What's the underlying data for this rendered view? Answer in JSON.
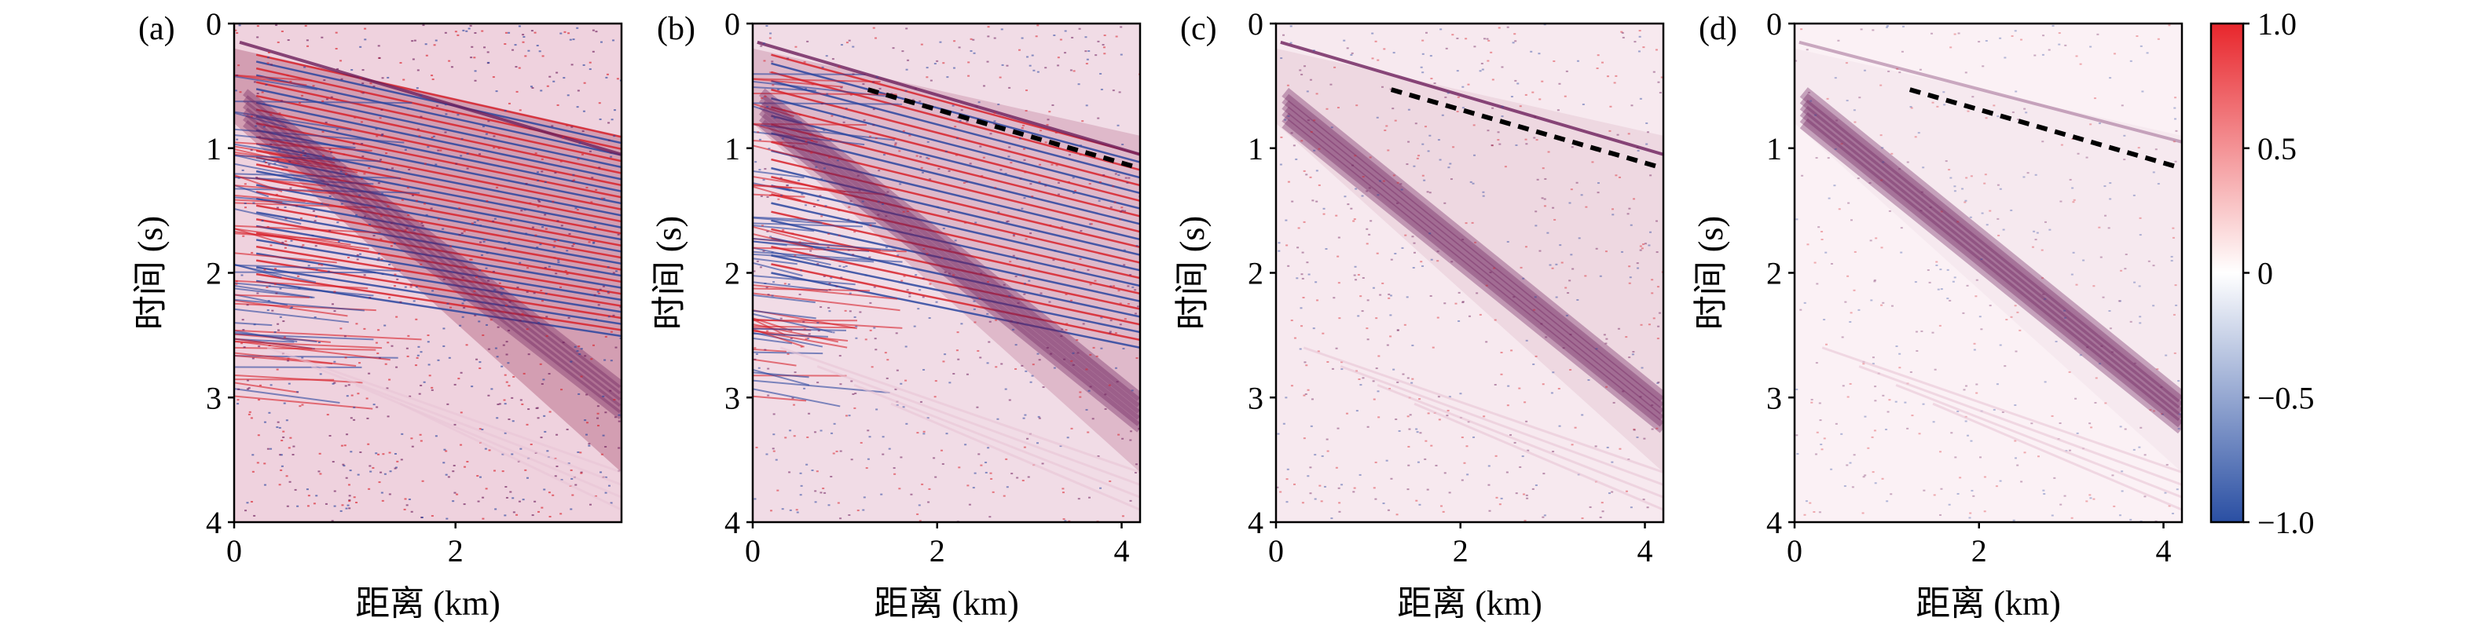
{
  "figure": {
    "colorbar": {
      "ticks": [
        1.0,
        0.5,
        0,
        -0.5,
        -1.0
      ],
      "tick_labels": [
        "1.0",
        "0.5",
        "0",
        "−0.5",
        "−1.0"
      ],
      "range": [
        -1.0,
        1.0
      ],
      "colormap": {
        "positive": "#e8262c",
        "zero": "#ffffff",
        "negative": "#2a4fa3"
      }
    }
  },
  "chart_data": [
    {
      "type": "heatmap",
      "panel": "(a)",
      "xlabel": "距离 (km)",
      "ylabel": "时间 (s)",
      "x_ticks": [
        0,
        2
      ],
      "y_ticks": [
        0,
        1,
        2,
        3,
        4
      ],
      "xlim": [
        0,
        3.5
      ],
      "ylim": [
        4,
        0
      ],
      "y_inverted": true,
      "colorbar_range": [
        -1.0,
        1.0
      ],
      "annotations": []
    },
    {
      "type": "heatmap",
      "panel": "(b)",
      "xlabel": "距离 (km)",
      "ylabel": "时间 (s)",
      "x_ticks": [
        0,
        2,
        4
      ],
      "y_ticks": [
        0,
        1,
        2,
        3,
        4
      ],
      "xlim": [
        0,
        4.2
      ],
      "ylim": [
        4,
        0
      ],
      "y_inverted": true,
      "colorbar_range": [
        -1.0,
        1.0
      ],
      "annotations": [
        {
          "type": "dashed-line",
          "color": "#000000",
          "x": [
            1.25,
            4.15
          ],
          "y": [
            0.53,
            1.15
          ]
        }
      ]
    },
    {
      "type": "heatmap",
      "panel": "(c)",
      "xlabel": "距离 (km)",
      "ylabel": "时间 (s)",
      "x_ticks": [
        0,
        2,
        4
      ],
      "y_ticks": [
        0,
        1,
        2,
        3,
        4
      ],
      "xlim": [
        0,
        4.2
      ],
      "ylim": [
        4,
        0
      ],
      "y_inverted": true,
      "colorbar_range": [
        -1.0,
        1.0
      ],
      "annotations": [
        {
          "type": "dashed-line",
          "color": "#000000",
          "x": [
            1.25,
            4.15
          ],
          "y": [
            0.53,
            1.15
          ]
        }
      ]
    },
    {
      "type": "heatmap",
      "panel": "(d)",
      "xlabel": "距离 (km)",
      "ylabel": "时间 (s)",
      "x_ticks": [
        0,
        2,
        4
      ],
      "y_ticks": [
        0,
        1,
        2,
        3,
        4
      ],
      "xlim": [
        0,
        4.2
      ],
      "ylim": [
        4,
        0
      ],
      "y_inverted": true,
      "colorbar_range": [
        -1.0,
        1.0
      ],
      "annotations": [
        {
          "type": "dashed-line",
          "color": "#000000",
          "x": [
            1.25,
            4.15
          ],
          "y": [
            0.53,
            1.15
          ]
        }
      ]
    }
  ]
}
